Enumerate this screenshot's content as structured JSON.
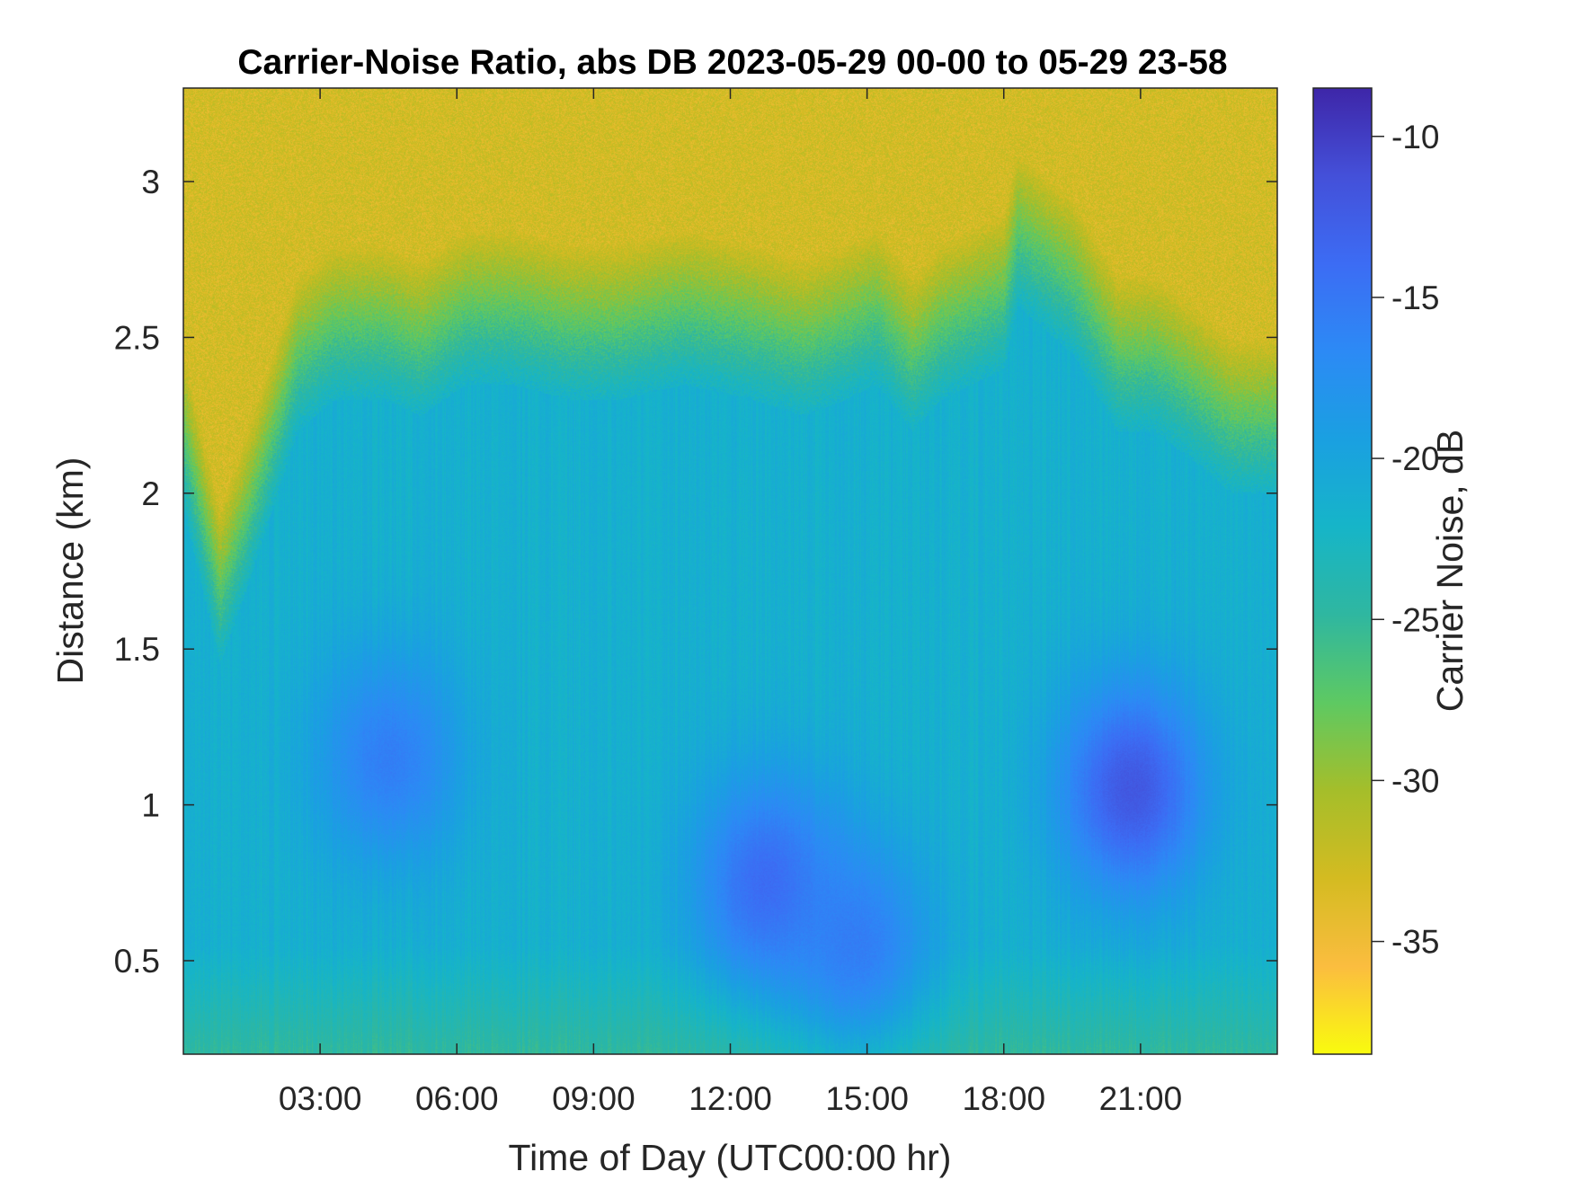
{
  "chart_data": {
    "type": "heatmap",
    "title": "Carrier-Noise Ratio, abs DB 2023-05-29 00-00 to 05-29 23-58",
    "xlabel": "Time of Day (UTC00:00 hr)",
    "ylabel": "Distance (km)",
    "colorbar_label": "Carrier Noise, dB",
    "xlim": [
      0,
      24
    ],
    "ylim": [
      0.2,
      3.3
    ],
    "clim": [
      -38.5,
      -8.5
    ],
    "x_ticks": [
      3,
      6,
      9,
      12,
      15,
      18,
      21
    ],
    "x_tick_labels": [
      "03:00",
      "06:00",
      "09:00",
      "12:00",
      "15:00",
      "18:00",
      "21:00"
    ],
    "y_ticks": [
      0.5,
      1,
      1.5,
      2,
      2.5,
      3
    ],
    "y_tick_labels": [
      "0.5",
      "1",
      "1.5",
      "2",
      "2.5",
      "3"
    ],
    "colorbar_ticks": [
      -10,
      -15,
      -20,
      -25,
      -30,
      -35
    ],
    "colorbar_tick_labels": [
      "-10",
      "-15",
      "-20",
      "-25",
      "-30",
      "-35"
    ],
    "colormap": "parula",
    "colormap_stops": [
      "#f9fb0e",
      "#fbbd3f",
      "#d4bb21",
      "#a5be2a",
      "#5ec962",
      "#2fb7a0",
      "#16b5c8",
      "#1aa0e1",
      "#2c8af5",
      "#3c6cf4",
      "#4450d9",
      "#3e26a8"
    ],
    "grid": false,
    "boundary_profile_hours": [
      0,
      0.8,
      1.4,
      2.5,
      3.3,
      4.4,
      5.2,
      6.2,
      7.2,
      8.5,
      9.5,
      11,
      12.5,
      13.6,
      14.5,
      15.2,
      16,
      16.6,
      17.3,
      18,
      18.3,
      19.5,
      20.5,
      21.3,
      22.2,
      23,
      24
    ],
    "boundary_profile_km": [
      2.2,
      1.7,
      1.95,
      2.45,
      2.55,
      2.55,
      2.5,
      2.6,
      2.6,
      2.55,
      2.55,
      2.6,
      2.55,
      2.5,
      2.55,
      2.6,
      2.45,
      2.55,
      2.6,
      2.65,
      2.85,
      2.7,
      2.45,
      2.45,
      2.35,
      2.25,
      2.25
    ],
    "strong_core_centers_hours_km": [
      [
        12.8,
        0.75
      ],
      [
        20.8,
        1.05
      ],
      [
        4.5,
        1.15
      ],
      [
        14.8,
        0.55
      ]
    ],
    "strong_core_values_db": [
      -13,
      -11,
      -15,
      -15
    ],
    "background_value_db": -20,
    "aloft_value_db": -33
  }
}
